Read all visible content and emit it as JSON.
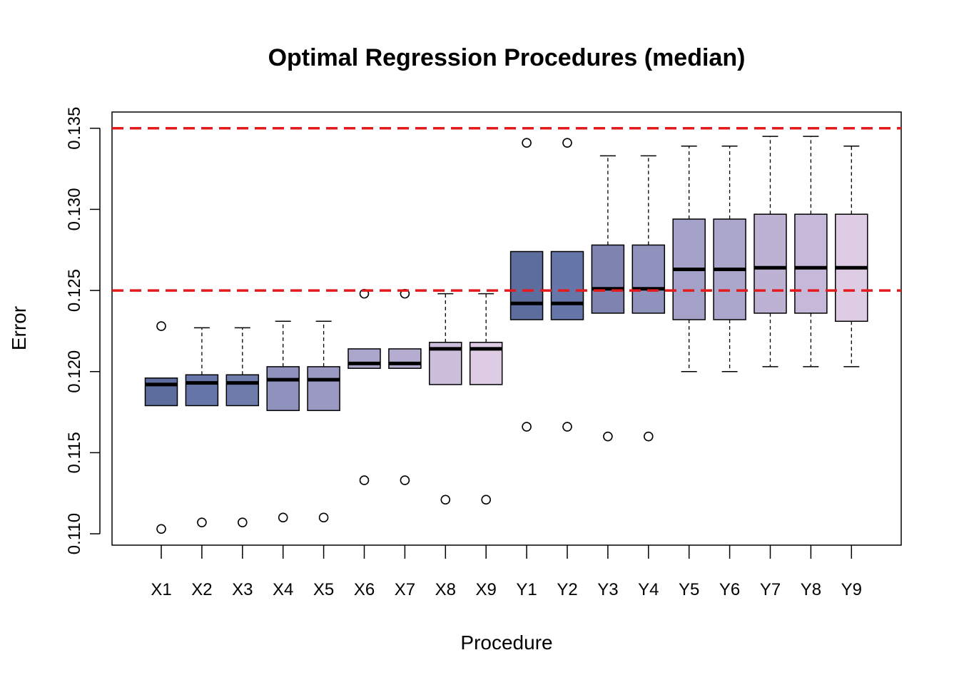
{
  "chart_data": {
    "type": "box",
    "title": "Optimal Regression Procedures (median)",
    "xlabel": "Procedure",
    "ylabel": "Error",
    "ylim": [
      0.1093,
      0.136
    ],
    "yticks": [
      "0.110",
      "0.115",
      "0.120",
      "0.125",
      "0.130",
      "0.135"
    ],
    "reference_lines": [
      {
        "y": 0.135,
        "color": "#e41a1c",
        "style": "dashed"
      },
      {
        "y": 0.125,
        "color": "#e41a1c",
        "style": "dashed"
      }
    ],
    "categories": [
      "X1",
      "X2",
      "X3",
      "X4",
      "X5",
      "X6",
      "X7",
      "X8",
      "X9",
      "Y1",
      "Y2",
      "Y3",
      "Y4",
      "Y5",
      "Y6",
      "Y7",
      "Y8",
      "Y9"
    ],
    "colors": [
      "#5d6d9e",
      "#6676a8",
      "#6e7cac",
      "#8e92bd",
      "#9999c4",
      "#aaa6cc",
      "#b4adcf",
      "#cbbedb",
      "#decbe4",
      "#5d6d9e",
      "#6676a8",
      "#7e83b0",
      "#8e92bd",
      "#a4a1c8",
      "#aba6cc",
      "#bdb1d4",
      "#c6b8d8",
      "#decbe4"
    ],
    "boxes": [
      {
        "low": 0.1179,
        "q1": 0.1179,
        "median": 0.1192,
        "q3": 0.1196,
        "high": 0.1196,
        "outliers": [
          0.1103,
          0.1228
        ]
      },
      {
        "low": 0.1179,
        "q1": 0.1179,
        "median": 0.1193,
        "q3": 0.1198,
        "high": 0.1227,
        "outliers": [
          0.1107
        ]
      },
      {
        "low": 0.1179,
        "q1": 0.1179,
        "median": 0.1193,
        "q3": 0.1198,
        "high": 0.1227,
        "outliers": [
          0.1107
        ]
      },
      {
        "low": 0.1176,
        "q1": 0.1176,
        "median": 0.1195,
        "q3": 0.1203,
        "high": 0.1231,
        "outliers": [
          0.111
        ]
      },
      {
        "low": 0.1176,
        "q1": 0.1176,
        "median": 0.1195,
        "q3": 0.1203,
        "high": 0.1231,
        "outliers": [
          0.111
        ]
      },
      {
        "low": 0.1202,
        "q1": 0.1202,
        "median": 0.1205,
        "q3": 0.1214,
        "high": 0.1214,
        "outliers": [
          0.1133,
          0.1248
        ]
      },
      {
        "low": 0.1202,
        "q1": 0.1202,
        "median": 0.1205,
        "q3": 0.1214,
        "high": 0.1214,
        "outliers": [
          0.1133,
          0.1248
        ]
      },
      {
        "low": 0.1192,
        "q1": 0.1192,
        "median": 0.1214,
        "q3": 0.1218,
        "high": 0.1248,
        "outliers": [
          0.1121
        ]
      },
      {
        "low": 0.1192,
        "q1": 0.1192,
        "median": 0.1214,
        "q3": 0.1218,
        "high": 0.1248,
        "outliers": [
          0.1121
        ]
      },
      {
        "low": 0.1232,
        "q1": 0.1232,
        "median": 0.1242,
        "q3": 0.1274,
        "high": 0.1274,
        "outliers": [
          0.1166,
          0.1341
        ]
      },
      {
        "low": 0.1232,
        "q1": 0.1232,
        "median": 0.1242,
        "q3": 0.1274,
        "high": 0.1274,
        "outliers": [
          0.1166,
          0.1341
        ]
      },
      {
        "low": 0.1236,
        "q1": 0.1236,
        "median": 0.1251,
        "q3": 0.1278,
        "high": 0.1333,
        "outliers": [
          0.116
        ]
      },
      {
        "low": 0.1236,
        "q1": 0.1236,
        "median": 0.1251,
        "q3": 0.1278,
        "high": 0.1333,
        "outliers": [
          0.116
        ]
      },
      {
        "low": 0.12,
        "q1": 0.1232,
        "median": 0.1263,
        "q3": 0.1294,
        "high": 0.1339,
        "outliers": []
      },
      {
        "low": 0.12,
        "q1": 0.1232,
        "median": 0.1263,
        "q3": 0.1294,
        "high": 0.1339,
        "outliers": []
      },
      {
        "low": 0.1203,
        "q1": 0.1236,
        "median": 0.1264,
        "q3": 0.1297,
        "high": 0.1345,
        "outliers": []
      },
      {
        "low": 0.1203,
        "q1": 0.1236,
        "median": 0.1264,
        "q3": 0.1297,
        "high": 0.1345,
        "outliers": []
      },
      {
        "low": 0.1203,
        "q1": 0.1231,
        "median": 0.1264,
        "q3": 0.1297,
        "high": 0.1339,
        "outliers": []
      }
    ],
    "grid": false,
    "legend": "none"
  }
}
